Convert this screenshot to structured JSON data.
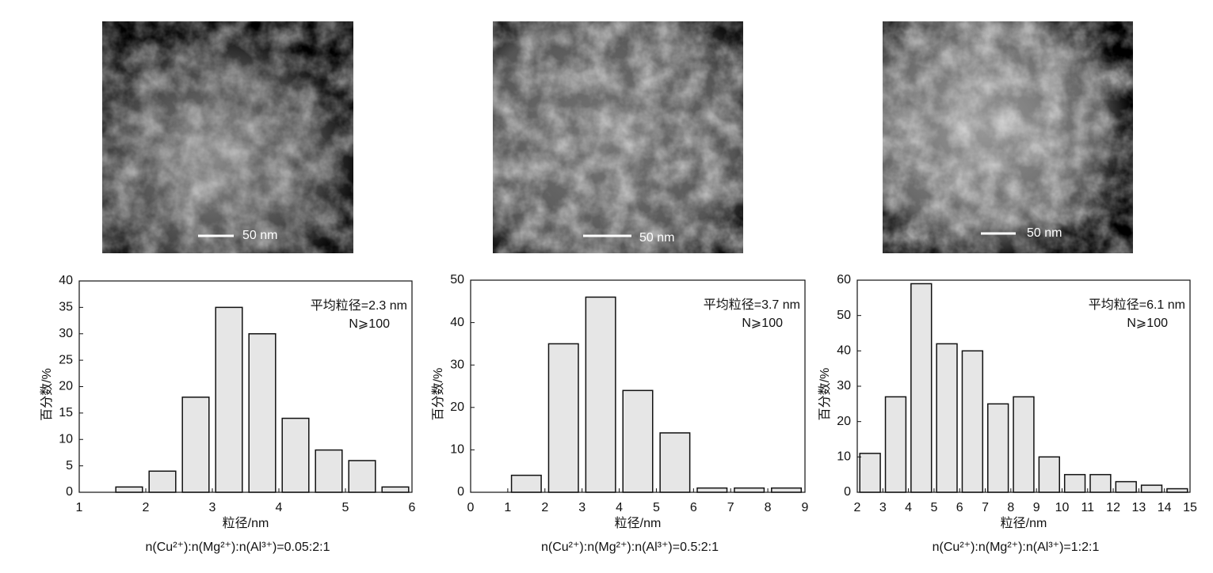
{
  "images": [
    {
      "scale_bar": "50 nm"
    },
    {
      "scale_bar": "50 nm"
    },
    {
      "scale_bar": "50 nm"
    }
  ],
  "chart_data": [
    {
      "type": "histogram",
      "annotation": "平均粒径=2.3 nm",
      "annotation2": "N⩾100",
      "xlabel": "粒径/nm",
      "ylabel": "百分数/%",
      "caption": "n(Cu²⁺):n(Mg²⁺):n(Al³⁺)=0.05:2:1",
      "color": "#e6e6e6",
      "bins": [
        1.5,
        2,
        2.5,
        3,
        3.5,
        4,
        4.5,
        5,
        5.5,
        6
      ],
      "values": [
        1,
        4,
        18,
        35,
        30,
        14,
        8,
        6,
        1
      ],
      "xlim": [
        1,
        6
      ],
      "xticks": [
        1,
        2,
        3,
        4,
        5,
        6
      ],
      "ylim": [
        0,
        40
      ],
      "yticks": [
        0,
        5,
        10,
        15,
        20,
        25,
        30,
        35,
        40
      ]
    },
    {
      "type": "histogram",
      "annotation": "平均粒径=3.7 nm",
      "annotation2": "N⩾100",
      "xlabel": "粒径/nm",
      "ylabel": "百分数/%",
      "caption": "n(Cu²⁺):n(Mg²⁺):n(Al³⁺)=0.5:2:1",
      "color": "#e6e6e6",
      "bins": [
        1,
        2,
        3,
        4,
        5,
        6,
        7,
        8,
        9
      ],
      "values": [
        4,
        35,
        46,
        24,
        14,
        1,
        1,
        1
      ],
      "xlim": [
        0,
        9
      ],
      "xticks": [
        0,
        1,
        2,
        3,
        4,
        5,
        6,
        7,
        8,
        9
      ],
      "ylim": [
        0,
        50
      ],
      "yticks": [
        0,
        10,
        20,
        30,
        40,
        50
      ]
    },
    {
      "type": "histogram",
      "annotation": "平均粒径=6.1 nm",
      "annotation2": "N⩾100",
      "xlabel": "粒径/nm",
      "ylabel": "百分数/%",
      "caption": "n(Cu²⁺):n(Mg²⁺):n(Al³⁺)=1:2:1",
      "color": "#e6e6e6",
      "bins": [
        2,
        3,
        4,
        5,
        6,
        7,
        8,
        9,
        10,
        11,
        12,
        13,
        14,
        15
      ],
      "values": [
        11,
        27,
        59,
        42,
        40,
        25,
        27,
        10,
        5,
        5,
        3,
        2,
        1
      ],
      "xlim": [
        2,
        15
      ],
      "xticks": [
        2,
        3,
        4,
        5,
        6,
        7,
        8,
        9,
        10,
        11,
        12,
        13,
        14,
        15
      ],
      "ylim": [
        0,
        60
      ],
      "yticks": [
        0,
        10,
        20,
        30,
        40,
        50,
        60
      ]
    }
  ]
}
